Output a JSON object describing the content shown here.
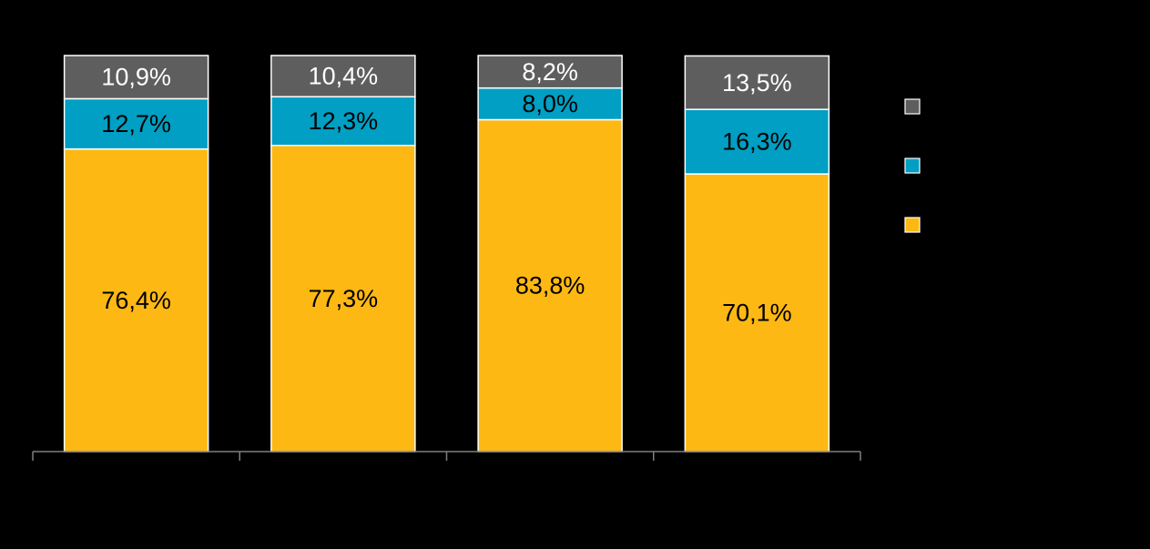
{
  "chart_data": {
    "type": "bar",
    "stacked": true,
    "percent_stacked": true,
    "categories": [
      "",
      "",
      "",
      ""
    ],
    "series": [
      {
        "values": [
          76.4,
          77.3,
          83.8,
          70.1
        ],
        "labels": [
          "76,4%",
          "77,3%",
          "83,8%",
          "70,1%"
        ],
        "color": "#FDB813",
        "label_color": "#000000"
      },
      {
        "values": [
          12.7,
          12.3,
          8.0,
          16.3
        ],
        "labels": [
          "12,7%",
          "12,3%",
          "8,0%",
          "16,3%"
        ],
        "color": "#009FC3",
        "label_color": "#000000"
      },
      {
        "values": [
          10.9,
          10.4,
          8.2,
          13.5
        ],
        "labels": [
          "10,9%",
          "10,4%",
          "8,2%",
          "13,5%"
        ],
        "color": "#5E5E5E",
        "label_color": "#FFFFFF"
      }
    ],
    "legend_position": "right",
    "legend_order": [
      2,
      1,
      0
    ],
    "ylim": [
      0,
      100
    ],
    "grid": false,
    "background": "#000000",
    "bar_outline_color": "#FFFFFF",
    "axis_color": "#7F7F7F"
  }
}
